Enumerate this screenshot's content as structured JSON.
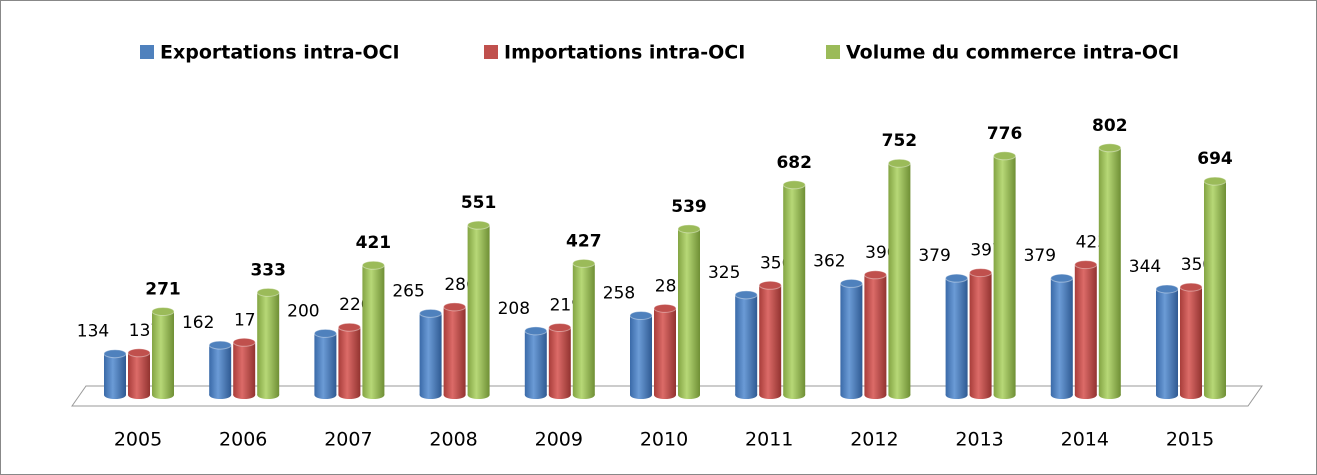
{
  "chart_data": {
    "type": "bar3d",
    "categories": [
      "2005",
      "2006",
      "2007",
      "2008",
      "2009",
      "2010",
      "2011",
      "2012",
      "2013",
      "2014",
      "2015"
    ],
    "series": [
      {
        "name": "Exportations intra-OCI",
        "color": "#4f81bd",
        "values": [
          134,
          162,
          200,
          265,
          208,
          258,
          325,
          362,
          379,
          379,
          344
        ]
      },
      {
        "name": "Importations intra-OCI",
        "color": "#c0504d",
        "values": [
          137,
          171,
          220,
          286,
          219,
          281,
          356,
          390,
          397,
          423,
          350
        ]
      },
      {
        "name": "Volume du commerce intra-OCI",
        "color": "#9bbb59",
        "values": [
          271,
          333,
          421,
          551,
          427,
          539,
          682,
          752,
          776,
          802,
          694
        ]
      }
    ],
    "ylim": [
      0,
      850
    ],
    "legend": "top"
  }
}
